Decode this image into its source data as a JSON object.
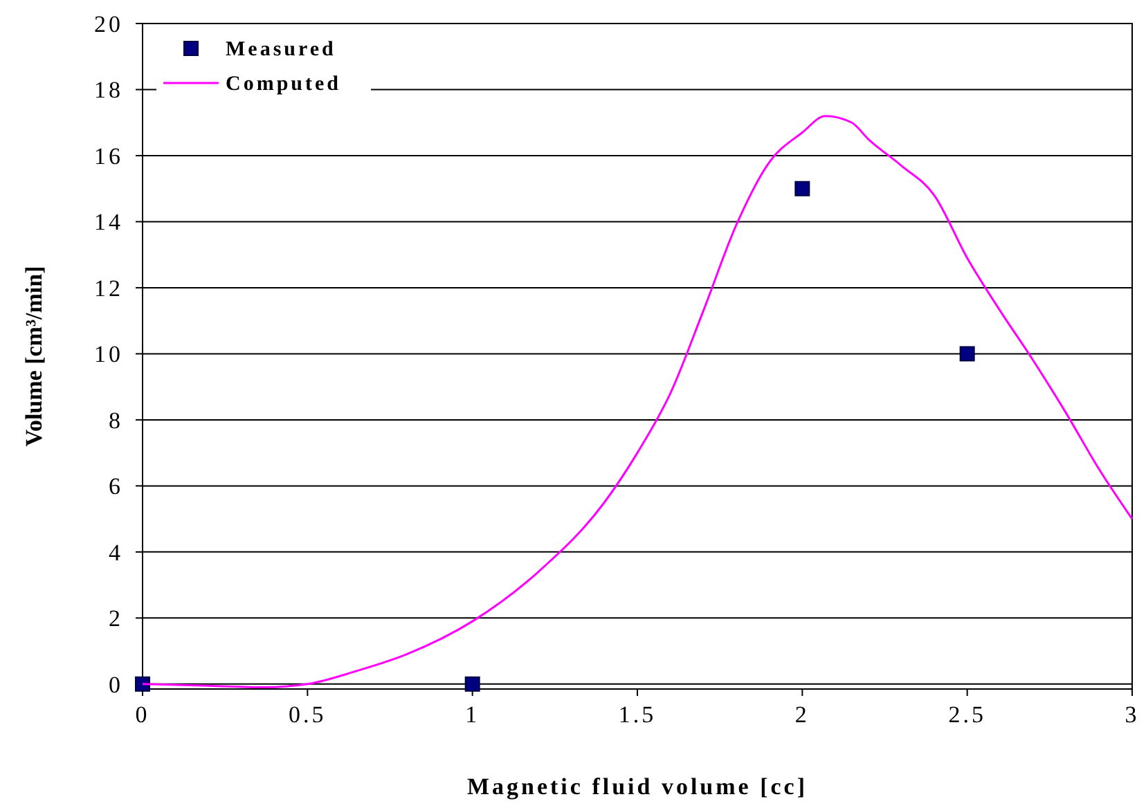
{
  "chart_data": {
    "type": "scatter",
    "xlabel": "Magnetic fluid volume [cc]",
    "ylabel": "Volume [cm³/min]",
    "xlim": [
      0,
      3
    ],
    "ylim": [
      -0.15,
      20
    ],
    "xticks": [
      0,
      0.5,
      1,
      1.5,
      2,
      2.5,
      3
    ],
    "yticks": [
      0,
      2,
      4,
      6,
      8,
      10,
      12,
      14,
      16,
      18,
      20
    ],
    "grid": "y",
    "legend": "top left",
    "series": [
      {
        "name": "Measured",
        "marker": "square",
        "color": "#000080",
        "x": [
          0,
          1,
          2,
          2.5
        ],
        "values": [
          0,
          0,
          15,
          10
        ]
      },
      {
        "name": "Computed",
        "type": "line",
        "marker": "none",
        "color": "#ff00ff",
        "x": [
          0,
          0.2,
          0.37,
          0.5,
          0.65,
          0.8,
          1.0,
          1.2,
          1.4,
          1.5,
          1.6,
          1.7,
          1.8,
          1.9,
          2.0,
          2.07,
          2.15,
          2.2,
          2.3,
          2.4,
          2.5,
          2.6,
          2.7,
          2.8,
          2.9,
          3.0
        ],
        "values": [
          0,
          -0.05,
          -0.1,
          0,
          0.4,
          0.9,
          1.9,
          3.4,
          5.5,
          7.0,
          8.8,
          11.3,
          13.9,
          15.8,
          16.7,
          17.2,
          17.0,
          16.5,
          15.7,
          14.8,
          12.9,
          11.3,
          9.8,
          8.2,
          6.5,
          5.0
        ]
      }
    ]
  }
}
